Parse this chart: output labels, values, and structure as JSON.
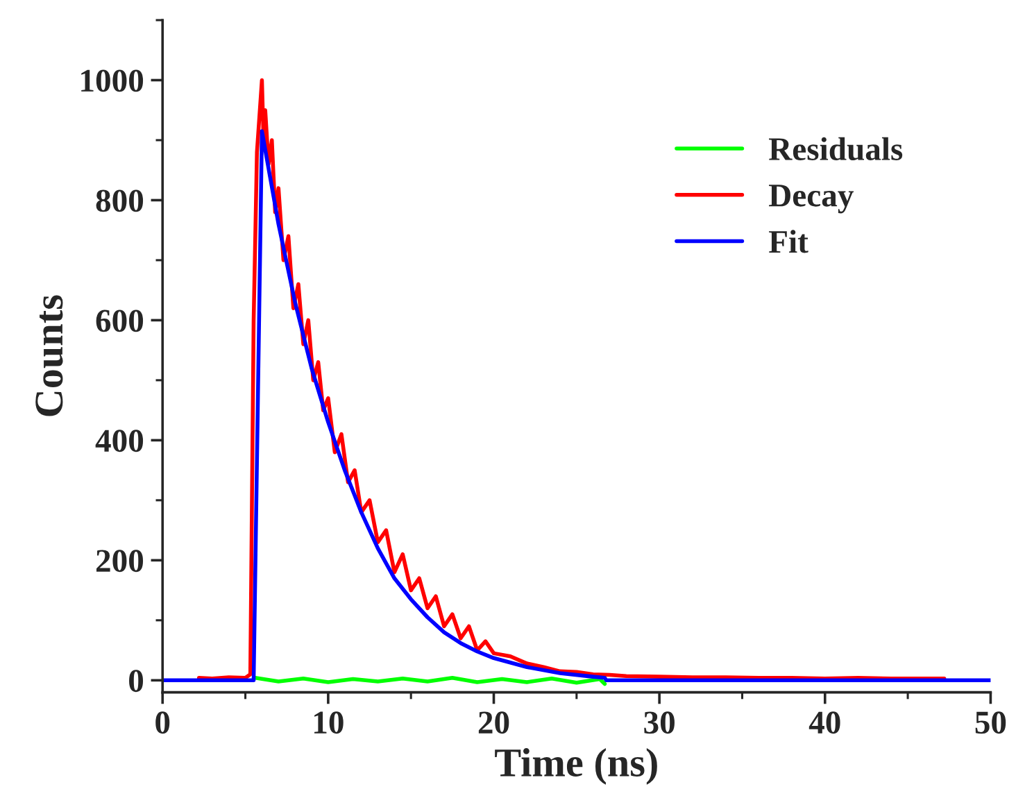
{
  "chart_data": {
    "type": "line",
    "xlabel": "Time (ns)",
    "ylabel": "Counts",
    "xlim": [
      0,
      50
    ],
    "ylim": [
      -20,
      1100
    ],
    "xticks": [
      0,
      10,
      20,
      30,
      40,
      50
    ],
    "yticks": [
      0,
      200,
      400,
      600,
      800,
      1000
    ],
    "grid": false,
    "legend": "top right",
    "marker": "none",
    "line_style": "solid",
    "series": [
      {
        "name": "Residuals",
        "color": "#00ff00",
        "x": [
          5.6,
          7,
          8.5,
          10,
          11.5,
          13,
          14.5,
          16,
          17.5,
          19,
          20.5,
          22,
          23.5,
          25,
          26.4,
          26.7
        ],
        "values": [
          4,
          -2,
          3,
          -3,
          2,
          -2,
          3,
          -2,
          4,
          -3,
          2,
          -3,
          3,
          -4,
          2,
          -6
        ]
      },
      {
        "name": "Decay",
        "color": "#ff0000",
        "x": [
          2.2,
          3,
          4,
          5,
          5.3,
          5.5,
          5.7,
          5.9,
          6.0,
          6.1,
          6.2,
          6.4,
          6.6,
          6.8,
          7.0,
          7.3,
          7.6,
          7.9,
          8.2,
          8.5,
          8.8,
          9.1,
          9.4,
          9.7,
          10.0,
          10.4,
          10.8,
          11.2,
          11.6,
          12.0,
          12.5,
          13.0,
          13.5,
          14.0,
          14.5,
          15.0,
          15.5,
          16.0,
          16.5,
          17.0,
          17.5,
          18.0,
          18.5,
          19.0,
          19.5,
          20.0,
          21,
          22,
          23,
          24,
          25,
          26,
          27,
          28,
          30,
          32,
          34,
          36,
          38,
          40,
          42,
          44,
          46,
          47.2
        ],
        "values": [
          4,
          3,
          5,
          4,
          10,
          600,
          880,
          960,
          1000,
          900,
          950,
          860,
          900,
          780,
          820,
          700,
          740,
          620,
          660,
          560,
          600,
          500,
          530,
          450,
          470,
          380,
          410,
          330,
          350,
          280,
          300,
          230,
          250,
          180,
          210,
          150,
          170,
          120,
          140,
          90,
          110,
          70,
          90,
          50,
          65,
          45,
          40,
          28,
          22,
          15,
          14,
          10,
          9,
          7,
          6,
          5,
          5,
          4,
          4,
          3,
          4,
          3,
          3,
          3
        ]
      },
      {
        "name": "Fit",
        "color": "#0000ff",
        "x": [
          0,
          5.4,
          5.5,
          6.0,
          7,
          8,
          9,
          10,
          11,
          12,
          13,
          14,
          15,
          16,
          17,
          18,
          19,
          20,
          22,
          24,
          26,
          26.7,
          26.8,
          50
        ],
        "values": [
          0,
          0,
          0,
          915,
          760,
          630,
          520,
          430,
          350,
          280,
          220,
          170,
          135,
          105,
          80,
          62,
          48,
          37,
          22,
          12,
          6,
          4,
          0,
          0
        ]
      }
    ]
  }
}
